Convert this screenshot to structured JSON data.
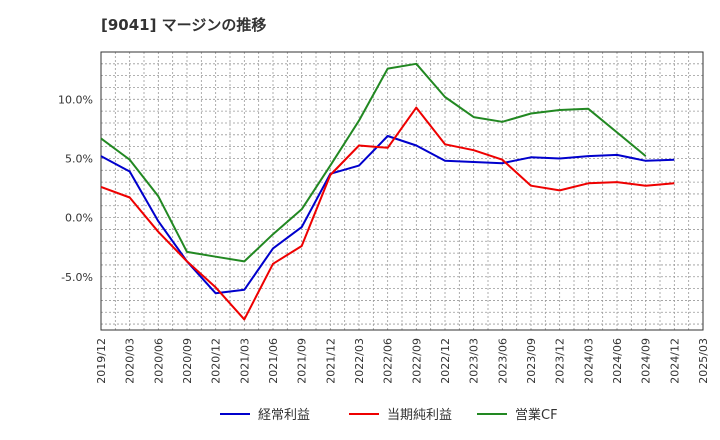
{
  "title": "[9041]  マージンの推移",
  "chart_data": {
    "type": "line",
    "title": "[9041]  マージンの推移",
    "xlabel": "",
    "ylabel": "",
    "x": [
      "2019/12",
      "2020/03",
      "2020/06",
      "2020/09",
      "2020/12",
      "2021/03",
      "2021/06",
      "2021/09",
      "2021/12",
      "2022/03",
      "2022/06",
      "2022/09",
      "2022/12",
      "2023/03",
      "2023/06",
      "2023/09",
      "2023/12",
      "2024/03",
      "2024/06",
      "2024/09",
      "2024/12",
      "2025/03"
    ],
    "ylim": [
      -9.5,
      14.0
    ],
    "yticks": [
      {
        "value": 10,
        "label": "10.0%"
      },
      {
        "value": 5,
        "label": "5.0%"
      },
      {
        "value": 0,
        "label": "0.0%"
      },
      {
        "value": -5,
        "label": "-5.0%"
      }
    ],
    "grid": true,
    "legend_position": "bottom",
    "series": [
      {
        "name": "経常利益",
        "color": "#0000cc",
        "values": [
          5.2,
          3.9,
          -0.3,
          -3.7,
          -6.4,
          -6.1,
          -2.6,
          -0.8,
          3.7,
          4.4,
          6.9,
          6.1,
          4.8,
          4.7,
          4.6,
          5.1,
          5.0,
          5.2,
          5.3,
          4.8,
          4.9,
          null
        ]
      },
      {
        "name": "当期純利益",
        "color": "#ee0000",
        "values": [
          2.6,
          1.7,
          -1.2,
          -3.7,
          -5.9,
          -8.6,
          -3.9,
          -2.4,
          3.6,
          6.1,
          5.9,
          9.3,
          6.2,
          5.7,
          4.9,
          2.7,
          2.3,
          2.9,
          3.0,
          2.7,
          2.9,
          null
        ]
      },
      {
        "name": "営業CF",
        "color": "#228822",
        "values": [
          6.7,
          4.9,
          1.8,
          -2.9,
          -3.3,
          -3.7,
          -1.4,
          0.7,
          4.4,
          8.2,
          12.6,
          13.0,
          10.2,
          8.5,
          8.1,
          8.8,
          9.1,
          9.2,
          7.2,
          5.2,
          null,
          null
        ]
      }
    ]
  }
}
